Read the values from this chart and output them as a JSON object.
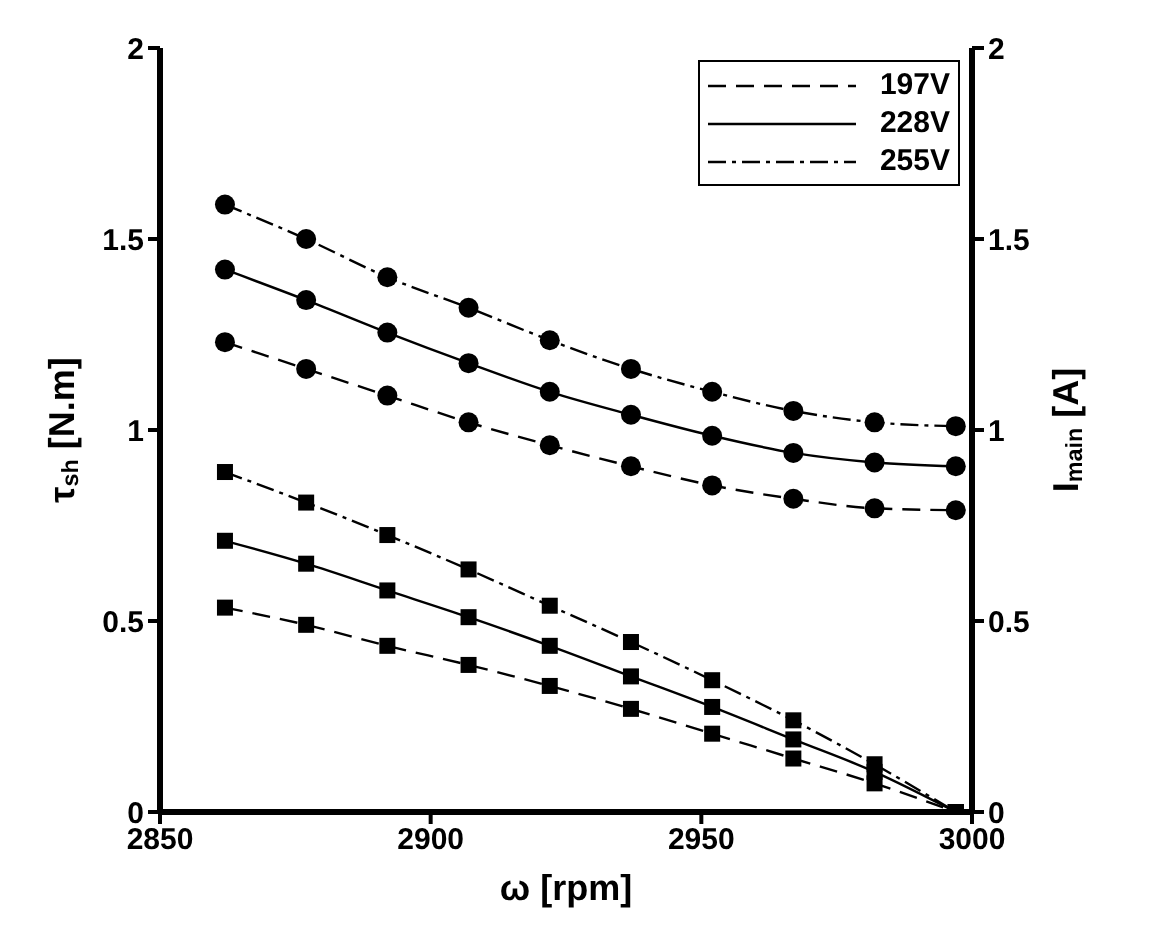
{
  "chart_data": {
    "type": "line",
    "xlabel": "ω [rpm]",
    "ylabel": "τ$_{sh}$ [N.m]",
    "y2label": "I$_{main}$ [A]",
    "x": [
      2862,
      2877,
      2892,
      2907,
      2922,
      2937,
      2952,
      2967,
      2982,
      2997
    ],
    "series": [
      {
        "name": "197V",
        "color": "#000000",
        "line_style": "dashed",
        "marker": "circle",
        "values": [
          1.23,
          1.16,
          1.09,
          1.02,
          0.96,
          0.905,
          0.855,
          0.82,
          0.795,
          0.79
        ]
      },
      {
        "name": "228V",
        "color": "#000000",
        "line_style": "solid",
        "marker": "circle",
        "values": [
          1.42,
          1.34,
          1.255,
          1.175,
          1.1,
          1.04,
          0.985,
          0.94,
          0.915,
          0.905
        ]
      },
      {
        "name": "255V",
        "color": "#000000",
        "line_style": "dashdot",
        "marker": "circle",
        "values": [
          1.59,
          1.5,
          1.4,
          1.32,
          1.235,
          1.16,
          1.1,
          1.05,
          1.02,
          1.01
        ]
      },
      {
        "color": "#000000",
        "line_style": "dashed",
        "marker": "square",
        "values": [
          0.535,
          0.49,
          0.435,
          0.385,
          0.33,
          0.27,
          0.205,
          0.14,
          0.075,
          0
        ]
      },
      {
        "color": "#000000",
        "line_style": "solid",
        "marker": "square",
        "values": [
          0.71,
          0.65,
          0.58,
          0.51,
          0.435,
          0.355,
          0.275,
          0.19,
          0.105,
          0
        ]
      },
      {
        "color": "#000000",
        "line_style": "dashdot",
        "marker": "square",
        "values": [
          0.89,
          0.81,
          0.725,
          0.635,
          0.54,
          0.445,
          0.345,
          0.24,
          0.125,
          0
        ]
      }
    ],
    "xlim": [
      2850,
      3000
    ],
    "xticks": [
      2850,
      2900,
      2950,
      3000
    ],
    "ylim": [
      0,
      2
    ],
    "yticks": [
      0,
      0.5,
      1,
      1.5,
      2
    ],
    "y2lim": [
      0,
      2
    ],
    "y2ticks": [
      0,
      0.5,
      1,
      1.5,
      2
    ],
    "grid": false,
    "legend": "top right"
  }
}
